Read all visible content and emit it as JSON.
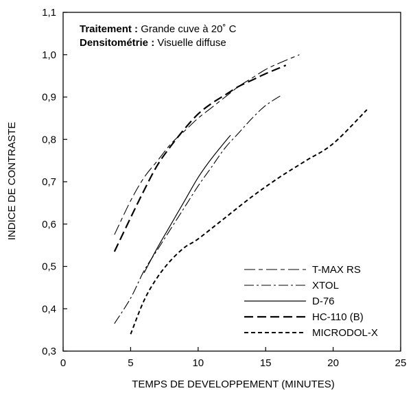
{
  "chart_data": {
    "type": "line",
    "xlabel": "TEMPS DE DEVELOPPEMENT (MINUTES)",
    "ylabel": "INDICE DE CONTRASTE",
    "xlim": [
      0,
      25
    ],
    "ylim": [
      0.3,
      1.1
    ],
    "x_ticks": [
      "0",
      "5",
      "10",
      "15",
      "20",
      "25"
    ],
    "y_ticks": [
      "0,3",
      "0,4",
      "0,5",
      "0,6",
      "0,7",
      "0,8",
      "0,9",
      "1,0",
      "1,1"
    ],
    "grid": false,
    "legend_position": "bottom-right",
    "annotation": {
      "line1_bold": "Traitement :",
      "line1_text": " Grande cuve à 20˚ C",
      "line2_bold": "Densitométrie :",
      "line2_text": " Visuelle diffuse"
    },
    "series": [
      {
        "name": "T-MAX RS",
        "style": "long-short-dash",
        "x": [
          3.8,
          5,
          6,
          7,
          8,
          9,
          10,
          11,
          12,
          13,
          14,
          15,
          16,
          17.5
        ],
        "y": [
          0.575,
          0.655,
          0.71,
          0.75,
          0.79,
          0.82,
          0.85,
          0.875,
          0.9,
          0.925,
          0.945,
          0.965,
          0.98,
          1.0
        ]
      },
      {
        "name": "XTOL",
        "style": "dash-dot",
        "x": [
          3.8,
          5,
          6,
          7,
          8,
          9,
          10,
          11,
          12,
          13,
          14,
          15,
          16.2
        ],
        "y": [
          0.365,
          0.425,
          0.49,
          0.54,
          0.59,
          0.64,
          0.69,
          0.735,
          0.78,
          0.815,
          0.85,
          0.88,
          0.905
        ]
      },
      {
        "name": "D-76",
        "style": "solid",
        "x": [
          6,
          7,
          8,
          9,
          10,
          11,
          12.4
        ],
        "y": [
          0.485,
          0.545,
          0.6,
          0.655,
          0.71,
          0.755,
          0.81
        ]
      },
      {
        "name": "HC-110 (B)",
        "style": "long-dash",
        "x": [
          3.8,
          5,
          6,
          7,
          8,
          9,
          10,
          11,
          12,
          13,
          14,
          15,
          16.5
        ],
        "y": [
          0.535,
          0.615,
          0.68,
          0.74,
          0.785,
          0.825,
          0.86,
          0.885,
          0.905,
          0.925,
          0.94,
          0.955,
          0.975
        ]
      },
      {
        "name": "MICRODOL-X",
        "style": "short-dash",
        "x": [
          5,
          6,
          7,
          8,
          9,
          10,
          12,
          14,
          16,
          18,
          20,
          22.5
        ],
        "y": [
          0.34,
          0.42,
          0.475,
          0.515,
          0.545,
          0.565,
          0.615,
          0.665,
          0.71,
          0.75,
          0.79,
          0.87
        ]
      }
    ]
  }
}
